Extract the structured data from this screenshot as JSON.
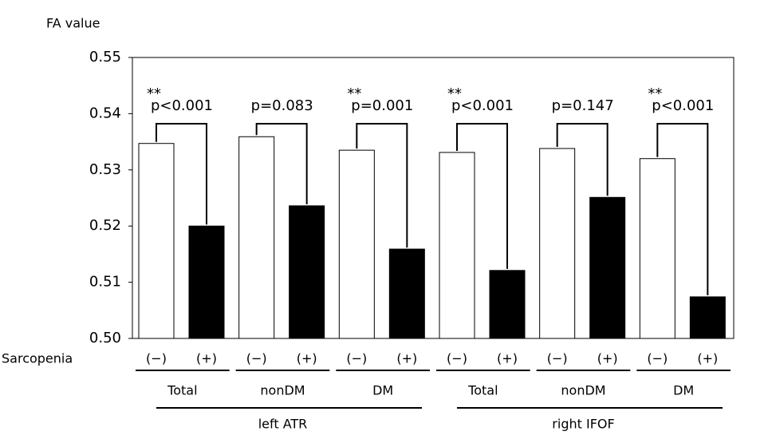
{
  "chart_data": {
    "type": "bar",
    "y_label": "FA value",
    "row_label": "Sarcopenia",
    "groups": [
      {
        "name": "left ATR",
        "categories": [
          "Total",
          "nonDM",
          "DM"
        ]
      },
      {
        "name": "right IFOF",
        "categories": [
          "Total",
          "nonDM",
          "DM"
        ]
      }
    ],
    "series": [
      {
        "name": "(−)",
        "color": "#ffffff",
        "values": [
          0.5347,
          0.5359,
          0.5335,
          0.5331,
          0.5338,
          0.532
        ]
      },
      {
        "name": "(+)",
        "color": "#000000",
        "values": [
          0.52,
          0.5236,
          0.5159,
          0.5121,
          0.5251,
          0.5074
        ]
      }
    ],
    "p_labels": [
      "p<0.001",
      "p=0.083",
      "p=0.001",
      "p<0.001",
      "p=0.147",
      "p<0.001"
    ],
    "significance": [
      "**",
      null,
      "**",
      "**",
      null,
      "**"
    ],
    "ylim": [
      0.5,
      0.55
    ],
    "yticks": [
      {
        "value": 0.5,
        "label": "0.50"
      },
      0.51,
      0.52,
      0.53,
      0.54,
      0.55
    ],
    "grid": false
  }
}
